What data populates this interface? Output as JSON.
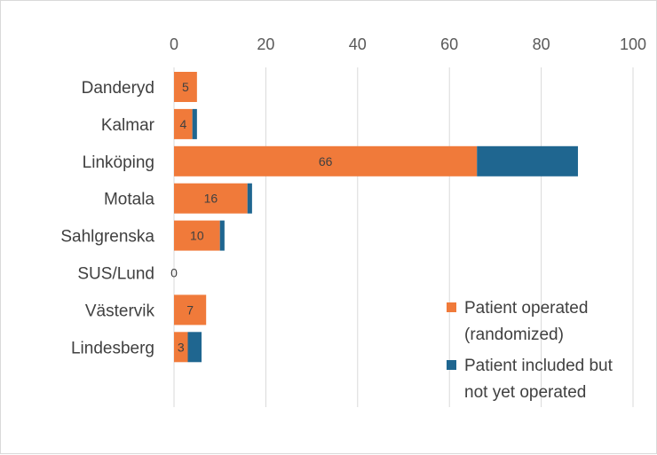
{
  "chart_data": {
    "type": "bar",
    "orientation": "horizontal",
    "stacked": true,
    "categories": [
      "Danderyd",
      "Kalmar",
      "Linköping",
      "Motala",
      "Sahlgrenska",
      "SUS/Lund",
      "Västervik",
      "Lindesberg"
    ],
    "series": [
      {
        "name": "Patient operated (randomized)",
        "color": "#F07A3A",
        "values": [
          5,
          4,
          66,
          16,
          10,
          0,
          7,
          3
        ],
        "labels": [
          "5",
          "4",
          "66",
          "16",
          "10",
          "0",
          "7",
          "3"
        ]
      },
      {
        "name": "Patient included but not yet operated",
        "color": "#1F6690",
        "values": [
          0,
          1,
          22,
          1,
          1,
          0,
          0,
          3
        ]
      }
    ],
    "xlim": [
      0,
      100
    ],
    "xticks": [
      "0",
      "20",
      "40",
      "60",
      "80",
      "100"
    ],
    "x_axis_position": "top",
    "grid": true,
    "legend": {
      "position": "bottom-right",
      "lines": [
        [
          "Patient operated",
          "(randomized)"
        ],
        [
          "Patient included but",
          "not yet operated"
        ]
      ]
    }
  }
}
